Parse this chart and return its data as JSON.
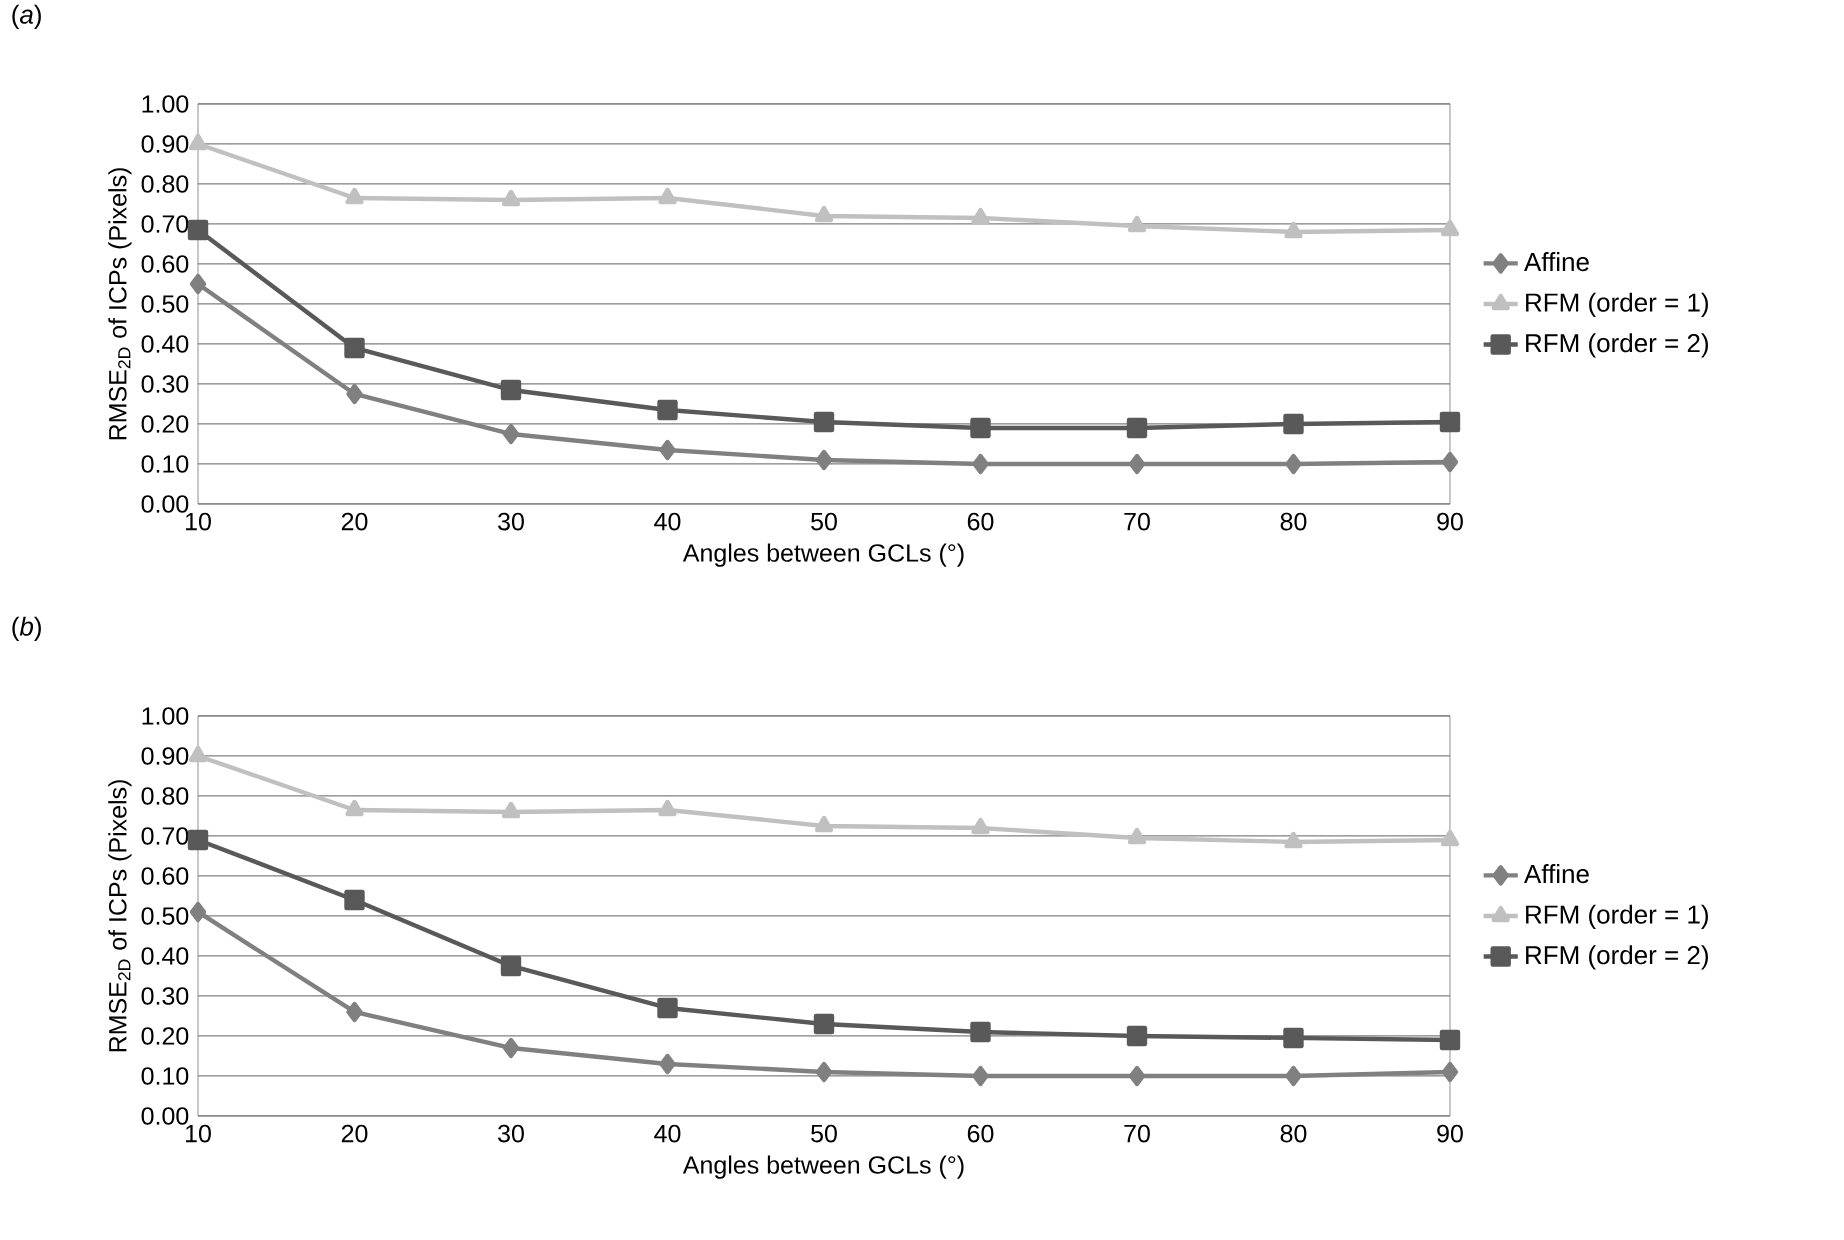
{
  "chart_data": [
    {
      "type": "line",
      "title": "(*a*)",
      "xlabel": "Angles between GCLs (°)",
      "ylabel": "RMSE$_{2D}$ of ICPs (Pixels)",
      "x": [
        10,
        20,
        30,
        40,
        50,
        60,
        70,
        80,
        90
      ],
      "xlim": [
        10,
        90
      ],
      "xticks": [
        10,
        20,
        30,
        40,
        50,
        60,
        70,
        80,
        90
      ],
      "ylim": [
        0,
        1
      ],
      "yticks": [
        {
          "value": 0,
          "label": "0.00"
        },
        {
          "value": 0.1,
          "label": "0.10"
        },
        {
          "value": 0.2,
          "label": "0.20"
        },
        {
          "value": 0.3,
          "label": "0.30"
        },
        {
          "value": 0.4,
          "label": "0.40"
        },
        {
          "value": 0.5,
          "label": "0.50"
        },
        {
          "value": 0.6,
          "label": "0.60"
        },
        {
          "value": 0.7,
          "label": "0.70"
        },
        {
          "value": 0.8,
          "label": "0.80"
        },
        {
          "value": 0.9,
          "label": "0.90"
        },
        {
          "value": 1,
          "label": "1.00"
        }
      ],
      "grid": "y",
      "legend": "right",
      "series": [
        {
          "name": "Affine",
          "color": "#808080",
          "marker": "diamond",
          "values": [
            0.55,
            0.275,
            0.175,
            0.135,
            0.11,
            0.1,
            0.1,
            0.1,
            0.105
          ]
        },
        {
          "name": "RFM (order = 1)",
          "color": "#c0c0c0",
          "marker": "triangle",
          "values": [
            0.9,
            0.765,
            0.76,
            0.765,
            0.72,
            0.715,
            0.695,
            0.68,
            0.685
          ]
        },
        {
          "name": "RFM (order = 2)",
          "color": "#595959",
          "marker": "square",
          "values": [
            0.685,
            0.39,
            0.285,
            0.235,
            0.205,
            0.19,
            0.19,
            0.2,
            0.205
          ]
        }
      ]
    },
    {
      "type": "line",
      "title": "(*b*)",
      "xlabel": "Angles between GCLs (°)",
      "ylabel": "RMSE$_{2D}$ of ICPs (Pixels)",
      "x": [
        10,
        20,
        30,
        40,
        50,
        60,
        70,
        80,
        90
      ],
      "xlim": [
        10,
        90
      ],
      "xticks": [
        10,
        20,
        30,
        40,
        50,
        60,
        70,
        80,
        90
      ],
      "ylim": [
        0,
        1
      ],
      "yticks": [
        {
          "value": 0,
          "label": "0.00"
        },
        {
          "value": 0.1,
          "label": "0.10"
        },
        {
          "value": 0.2,
          "label": "0.20"
        },
        {
          "value": 0.3,
          "label": "0.30"
        },
        {
          "value": 0.4,
          "label": "0.40"
        },
        {
          "value": 0.5,
          "label": "0.50"
        },
        {
          "value": 0.6,
          "label": "0.60"
        },
        {
          "value": 0.7,
          "label": "0.70"
        },
        {
          "value": 0.8,
          "label": "0.80"
        },
        {
          "value": 0.9,
          "label": "0.90"
        },
        {
          "value": 1,
          "label": "1.00"
        }
      ],
      "grid": "y",
      "legend": "right",
      "series": [
        {
          "name": "Affine",
          "color": "#808080",
          "marker": "diamond",
          "values": [
            0.51,
            0.26,
            0.17,
            0.13,
            0.11,
            0.1,
            0.1,
            0.1,
            0.11
          ]
        },
        {
          "name": "RFM (order = 1)",
          "color": "#c0c0c0",
          "marker": "triangle",
          "values": [
            0.9,
            0.765,
            0.76,
            0.765,
            0.725,
            0.72,
            0.695,
            0.685,
            0.69
          ]
        },
        {
          "name": "RFM (order = 2)",
          "color": "#595959",
          "marker": "square",
          "values": [
            0.69,
            0.54,
            0.375,
            0.27,
            0.23,
            0.21,
            0.2,
            0.195,
            0.19
          ]
        }
      ]
    }
  ]
}
